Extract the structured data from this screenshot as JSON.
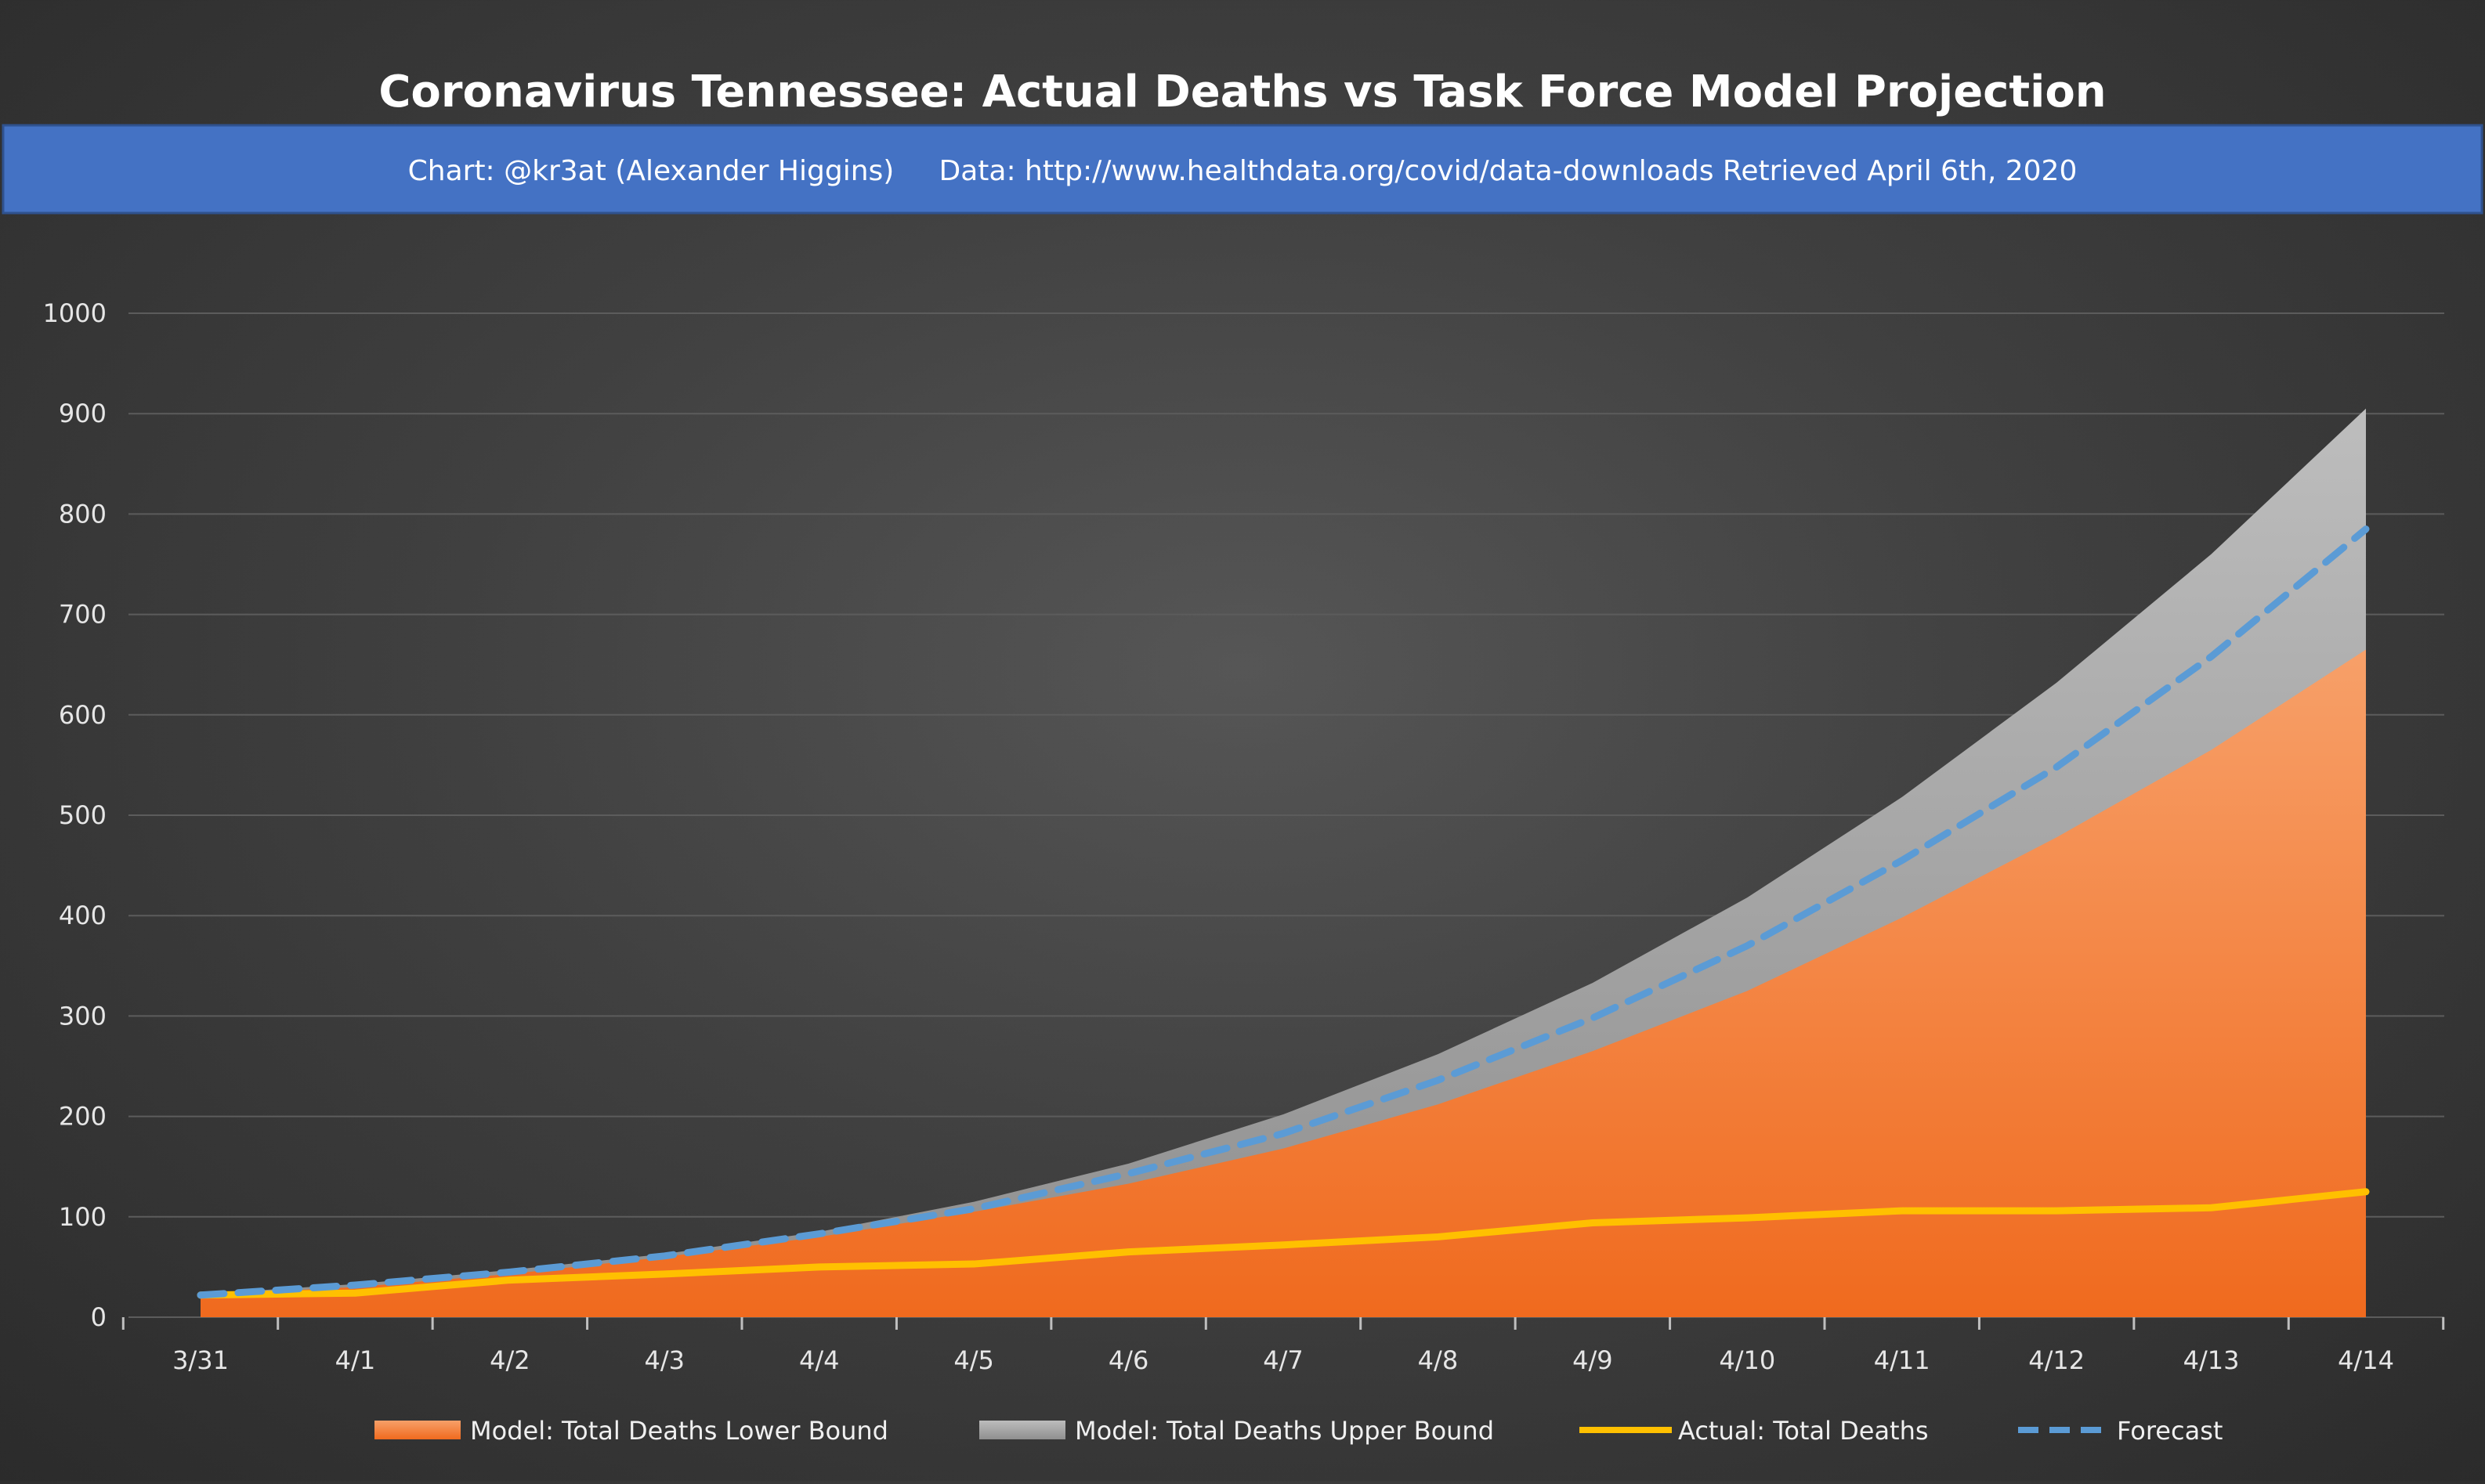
{
  "chart_data": {
    "type": "area",
    "title": "Coronavirus Tennessee: Actual Deaths vs Task Force Model Projection",
    "subtitle": "Chart: @kr3at (Alexander Higgins)     Data: http://www.healthdata.org/covid/data-downloads Retrieved April 6th, 2020",
    "categories": [
      "3/31",
      "4/1",
      "4/2",
      "4/3",
      "4/4",
      "4/5",
      "4/6",
      "4/7",
      "4/8",
      "4/9",
      "4/10",
      "4/11",
      "4/12",
      "4/13",
      "4/14"
    ],
    "ylim": [
      0,
      1000
    ],
    "yticks": [
      0,
      100,
      200,
      300,
      400,
      500,
      600,
      700,
      800,
      900,
      1000
    ],
    "grid": true,
    "legend_position": "bottom",
    "series": [
      {
        "name": "Model: Total Deaths Lower Bound",
        "kind": "area",
        "color": "#f47a2e",
        "values": [
          22,
          30,
          43,
          60,
          80,
          105,
          133,
          168,
          212,
          265,
          325,
          398,
          478,
          565,
          665
        ]
      },
      {
        "name": "Model: Total Deaths Upper Bound",
        "kind": "area",
        "color": "#a8a8a8",
        "values": [
          23,
          33,
          47,
          63,
          85,
          115,
          153,
          202,
          262,
          333,
          418,
          518,
          632,
          760,
          905
        ]
      },
      {
        "name": "Actual: Total Deaths",
        "kind": "line",
        "color": "#ffc000",
        "values": [
          22,
          24,
          37,
          43,
          50,
          53,
          65,
          72,
          80,
          94,
          99,
          106,
          106,
          109,
          125
        ]
      },
      {
        "name": "Forecast",
        "kind": "dashed-line",
        "color": "#5b9bd5",
        "values": [
          22,
          32,
          45,
          61,
          83,
          108,
          143,
          183,
          236,
          298,
          370,
          455,
          548,
          658,
          785
        ]
      }
    ]
  }
}
